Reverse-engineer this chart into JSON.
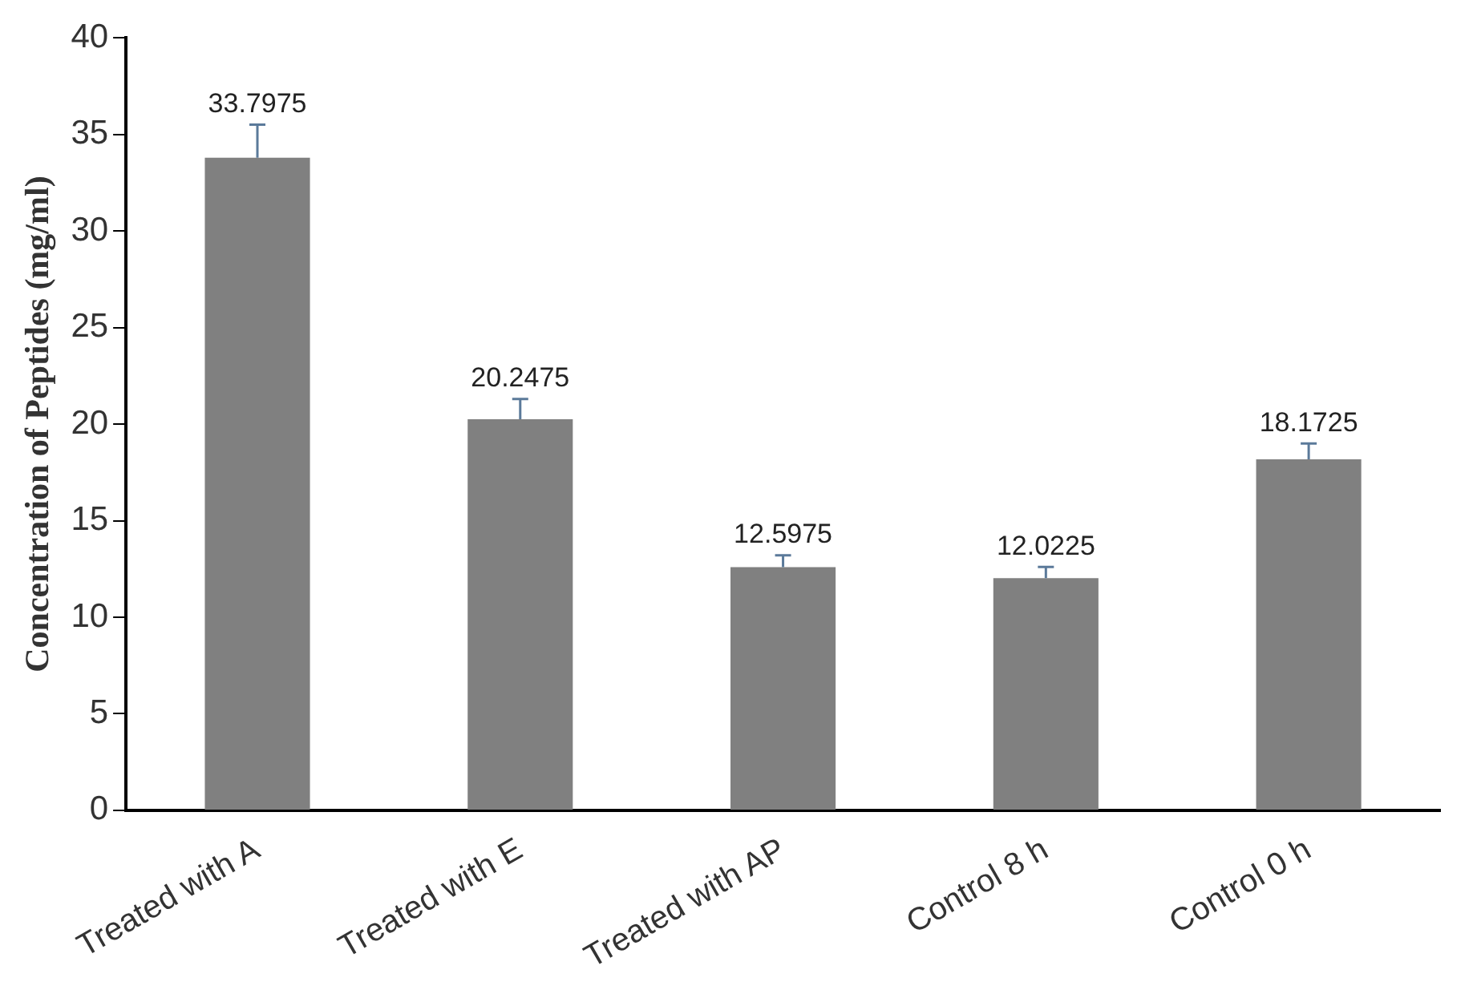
{
  "chart_data": {
    "type": "bar",
    "ylabel": "Concentration of Peptides (mg/ml)",
    "categories": [
      "Treated with A",
      "Treated with E",
      "Treated with AP",
      "Control 8 h",
      "Control 0 h"
    ],
    "values": [
      33.7975,
      20.2475,
      12.5975,
      12.0225,
      18.1725
    ],
    "errors": [
      [
        33.7975,
        35.5
      ],
      [
        20.2475,
        21.3
      ],
      [
        12.5975,
        13.2
      ],
      [
        12.0225,
        12.6
      ],
      [
        18.1725,
        19.0
      ]
    ],
    "color": "#808080",
    "ylim": [
      0,
      40
    ],
    "yticks": [
      0,
      5,
      10,
      15,
      20,
      25,
      30,
      35,
      40
    ],
    "data_labels": true,
    "grid": false,
    "legend": false
  }
}
